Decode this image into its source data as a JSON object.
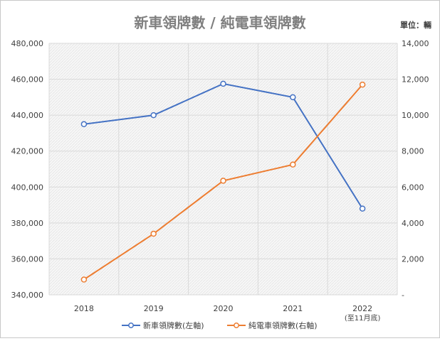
{
  "chart_data": {
    "type": "line",
    "title": "新車領牌數 / 純電車領牌數",
    "unit_label": "單位：輛",
    "categories": [
      "2018",
      "2019",
      "2020",
      "2021",
      "2022"
    ],
    "category_sublabels": [
      "",
      "",
      "",
      "",
      "(至11月底)"
    ],
    "series": [
      {
        "name": "新車領牌數(左軸)",
        "axis": "left",
        "color": "#4472C4",
        "values": [
          435000,
          440000,
          457500,
          450000,
          388000
        ]
      },
      {
        "name": "純電車領牌數(右軸)",
        "axis": "right",
        "color": "#ED7D31",
        "values": [
          850,
          3400,
          6350,
          7250,
          11700
        ]
      }
    ],
    "left_axis": {
      "ylim": [
        340000,
        480000
      ],
      "ticks": [
        "340,000",
        "360,000",
        "380,000",
        "400,000",
        "420,000",
        "440,000",
        "460,000",
        "480,000"
      ]
    },
    "right_axis": {
      "ylim": [
        0,
        14000
      ],
      "ticks": [
        "-",
        "2,000",
        "4,000",
        "6,000",
        "8,000",
        "10,000",
        "12,000",
        "14,000"
      ]
    },
    "grid": true,
    "legend_position": "bottom"
  }
}
